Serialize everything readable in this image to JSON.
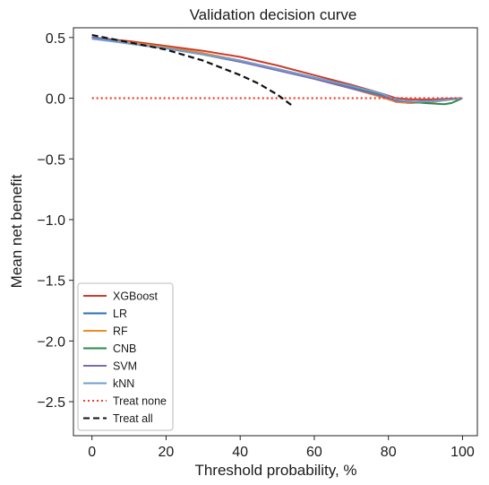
{
  "chart_data": {
    "type": "line",
    "title": "Validation decision curve",
    "xlabel": "Threshold probability, %",
    "ylabel": "Mean net benefit",
    "xlim": [
      -5,
      104
    ],
    "ylim": [
      -2.78,
      0.58
    ],
    "x_ticks": [
      0,
      20,
      40,
      60,
      80,
      100
    ],
    "y_ticks": [
      0.5,
      0.0,
      -0.5,
      -1.0,
      -1.5,
      -2.0,
      -2.5
    ],
    "x_tick_labels": [
      "0",
      "20",
      "40",
      "60",
      "80",
      "100"
    ],
    "y_tick_labels": [
      "0.5",
      "0.0",
      "−0.5",
      "−1.0",
      "−1.5",
      "−2.0",
      "−2.5"
    ],
    "grid": false,
    "legend_position": "bottom-left",
    "series": [
      {
        "name": "XGBoost",
        "color": "#cc3b2b",
        "style": "solid",
        "points": [
          [
            0,
            0.5
          ],
          [
            10,
            0.47
          ],
          [
            20,
            0.43
          ],
          [
            30,
            0.39
          ],
          [
            40,
            0.34
          ],
          [
            50,
            0.27
          ],
          [
            60,
            0.19
          ],
          [
            70,
            0.11
          ],
          [
            78,
            0.04
          ],
          [
            82,
            0.0
          ],
          [
            86,
            -0.01
          ],
          [
            92,
            -0.01
          ],
          [
            100,
            0.0
          ]
        ]
      },
      {
        "name": "LR",
        "color": "#2e6fb5",
        "style": "solid",
        "points": [
          [
            0,
            0.5
          ],
          [
            10,
            0.46
          ],
          [
            20,
            0.42
          ],
          [
            30,
            0.37
          ],
          [
            40,
            0.31
          ],
          [
            50,
            0.24
          ],
          [
            60,
            0.17
          ],
          [
            70,
            0.09
          ],
          [
            78,
            0.02
          ],
          [
            82,
            -0.03
          ],
          [
            86,
            -0.04
          ],
          [
            92,
            -0.02
          ],
          [
            100,
            0.0
          ]
        ]
      },
      {
        "name": "RF",
        "color": "#f08a24",
        "style": "solid",
        "points": [
          [
            0,
            0.49
          ],
          [
            10,
            0.46
          ],
          [
            20,
            0.42
          ],
          [
            30,
            0.37
          ],
          [
            40,
            0.31
          ],
          [
            50,
            0.24
          ],
          [
            60,
            0.16
          ],
          [
            70,
            0.08
          ],
          [
            78,
            0.01
          ],
          [
            82,
            -0.03
          ],
          [
            86,
            -0.04
          ],
          [
            92,
            -0.03
          ],
          [
            100,
            0.0
          ]
        ]
      },
      {
        "name": "CNB",
        "color": "#2a8a4a",
        "style": "solid",
        "points": [
          [
            0,
            0.5
          ],
          [
            10,
            0.45
          ],
          [
            20,
            0.41
          ],
          [
            30,
            0.36
          ],
          [
            40,
            0.3
          ],
          [
            50,
            0.24
          ],
          [
            60,
            0.17
          ],
          [
            70,
            0.1
          ],
          [
            78,
            0.03
          ],
          [
            82,
            -0.02
          ],
          [
            86,
            -0.03
          ],
          [
            90,
            -0.04
          ],
          [
            95,
            -0.05
          ],
          [
            97,
            -0.04
          ],
          [
            100,
            0.0
          ]
        ]
      },
      {
        "name": "SVM",
        "color": "#7b6aae",
        "style": "solid",
        "points": [
          [
            0,
            0.5
          ],
          [
            10,
            0.45
          ],
          [
            20,
            0.41
          ],
          [
            30,
            0.36
          ],
          [
            40,
            0.3
          ],
          [
            50,
            0.23
          ],
          [
            60,
            0.16
          ],
          [
            70,
            0.08
          ],
          [
            78,
            0.02
          ],
          [
            82,
            -0.02
          ],
          [
            86,
            -0.03
          ],
          [
            92,
            -0.02
          ],
          [
            100,
            0.0
          ]
        ]
      },
      {
        "name": "kNN",
        "color": "#6f9fd0",
        "style": "solid",
        "points": [
          [
            0,
            0.49
          ],
          [
            10,
            0.45
          ],
          [
            20,
            0.41
          ],
          [
            30,
            0.36
          ],
          [
            40,
            0.31
          ],
          [
            50,
            0.24
          ],
          [
            60,
            0.17
          ],
          [
            70,
            0.1
          ],
          [
            78,
            0.04
          ],
          [
            81,
            0.0
          ],
          [
            84,
            -0.02
          ],
          [
            88,
            -0.03
          ],
          [
            94,
            -0.02
          ],
          [
            100,
            0.0
          ]
        ]
      },
      {
        "name": "Treat none",
        "color": "#e8402a",
        "style": "dotted",
        "points": [
          [
            0,
            0.0
          ],
          [
            100,
            0.0
          ]
        ]
      },
      {
        "name": "Treat all",
        "color": "#111111",
        "style": "dashed",
        "points": [
          [
            0,
            0.52
          ],
          [
            10,
            0.46
          ],
          [
            20,
            0.4
          ],
          [
            30,
            0.31
          ],
          [
            40,
            0.19
          ],
          [
            45,
            0.12
          ],
          [
            50,
            0.03
          ],
          [
            54,
            -0.06
          ]
        ]
      }
    ]
  }
}
